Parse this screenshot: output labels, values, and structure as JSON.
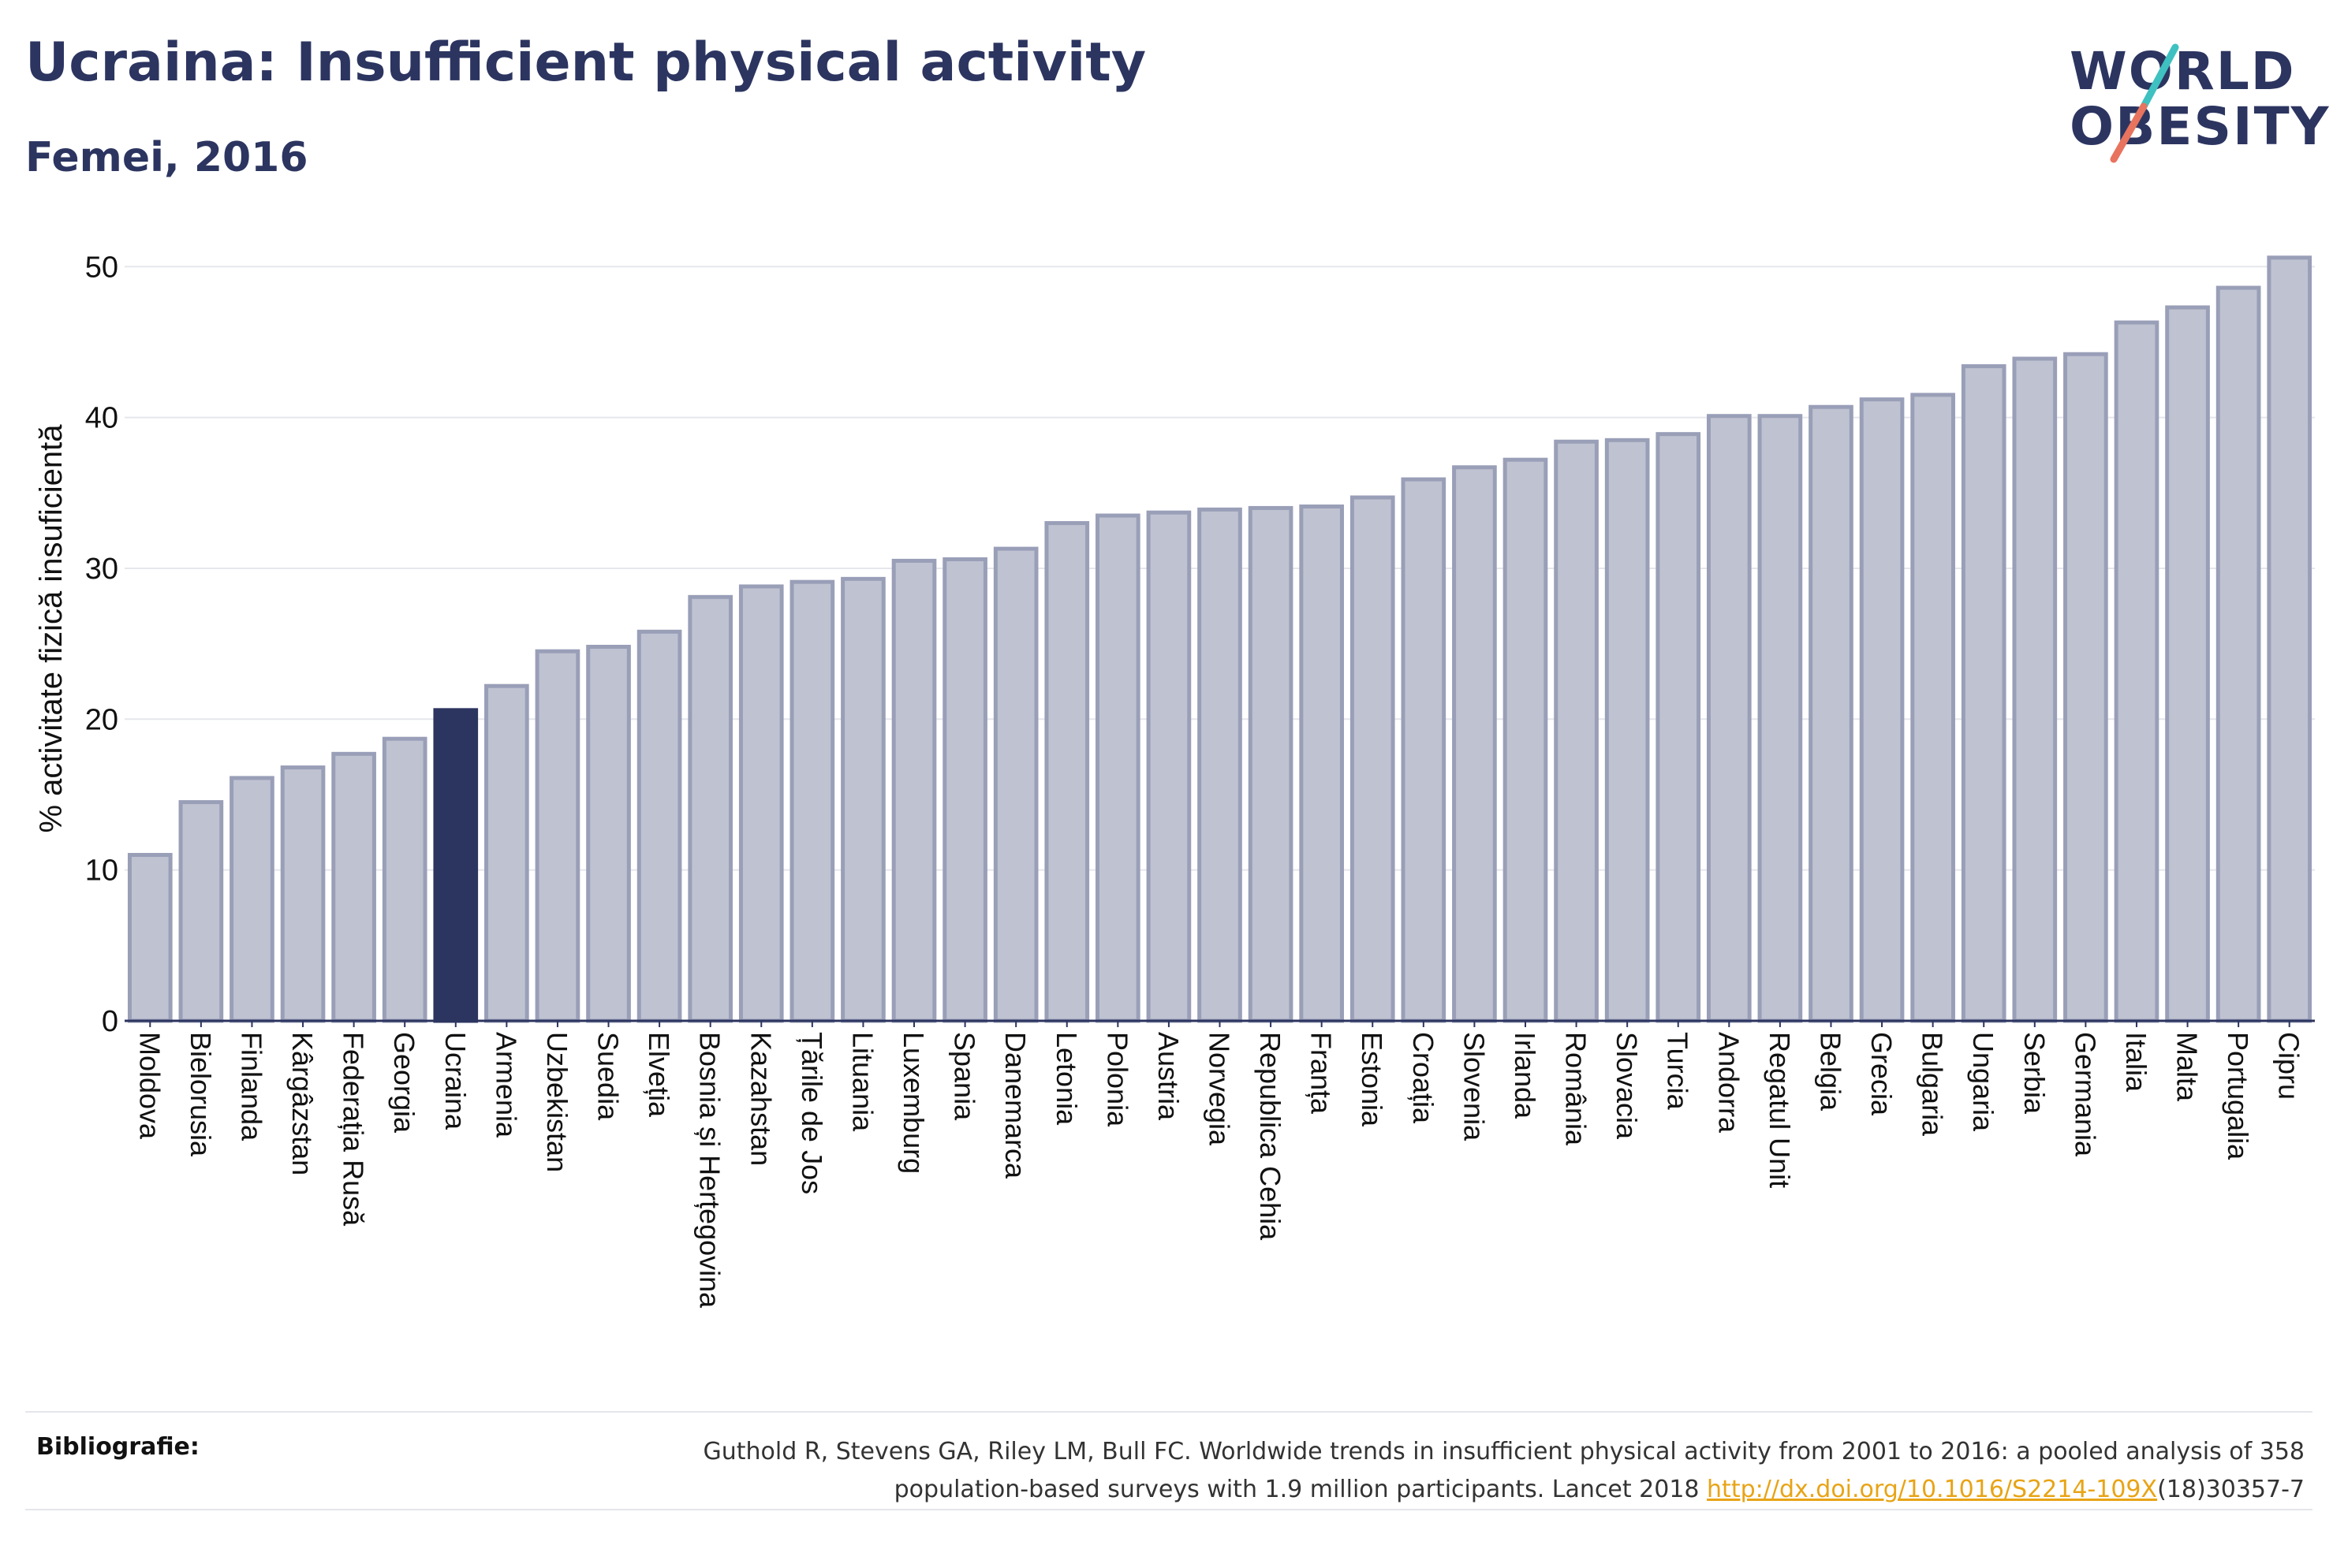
{
  "header": {
    "title": "Ucraina: Insufficient physical activity",
    "subtitle": "Femei, 2016"
  },
  "logo": {
    "line1": "WORLD",
    "line2": "OBESITY",
    "accent_colors": [
      "#3ec1c0",
      "#e8735e"
    ]
  },
  "chart_data": {
    "type": "bar",
    "title": "",
    "xlabel": "",
    "ylabel": "% activitate fizică insuficientă",
    "ylim": [
      0,
      52
    ],
    "yticks": [
      0,
      10,
      20,
      30,
      40,
      50
    ],
    "grid": true,
    "highlight_category": "Ucraina",
    "highlight_color": "#2c3560",
    "bar_color": "#bfc2d0",
    "bar_edge_color": "#9a9fb8",
    "categories": [
      "Moldova",
      "Bielorusia",
      "Finlanda",
      "Kârgâzstan",
      "Federația Rusă",
      "Georgia",
      "Ucraina",
      "Armenia",
      "Uzbekistan",
      "Suedia",
      "Elveția",
      "Bosnia și Herțegovina",
      "Kazahstan",
      "Țările de Jos",
      "Lituania",
      "Luxemburg",
      "Spania",
      "Danemarca",
      "Letonia",
      "Polonia",
      "Austria",
      "Norvegia",
      "Republica Cehia",
      "Franța",
      "Estonia",
      "Croația",
      "Slovenia",
      "Irlanda",
      "România",
      "Slovacia",
      "Turcia",
      "Andorra",
      "Regatul Unit",
      "Belgia",
      "Grecia",
      "Bulgaria",
      "Ungaria",
      "Serbia",
      "Germania",
      "Italia",
      "Malta",
      "Portugalia",
      "Cipru"
    ],
    "values": [
      11.0,
      14.5,
      16.1,
      16.8,
      17.7,
      18.7,
      20.6,
      22.2,
      24.5,
      24.8,
      25.8,
      28.1,
      28.8,
      29.1,
      29.3,
      30.5,
      30.6,
      31.3,
      33.0,
      33.5,
      33.7,
      33.9,
      34.0,
      34.1,
      34.7,
      35.9,
      36.7,
      37.2,
      38.4,
      38.5,
      38.9,
      40.1,
      40.1,
      40.7,
      41.2,
      41.5,
      43.4,
      43.9,
      44.2,
      46.3,
      47.3,
      48.6,
      50.6
    ]
  },
  "footer": {
    "label": "Bibliografie:",
    "text_line1": "Guthold R, Stevens GA, Riley LM, Bull FC. Worldwide trends in insufficient physical activity from 2001 to 2016: a pooled analysis of 358",
    "text_line2_prefix": "population-based surveys with 1.9 million participants. Lancet 2018 ",
    "link": "http://dx.doi.org/10.1016/S2214-109X",
    "text_line2_suffix": "(18)30357-7"
  }
}
